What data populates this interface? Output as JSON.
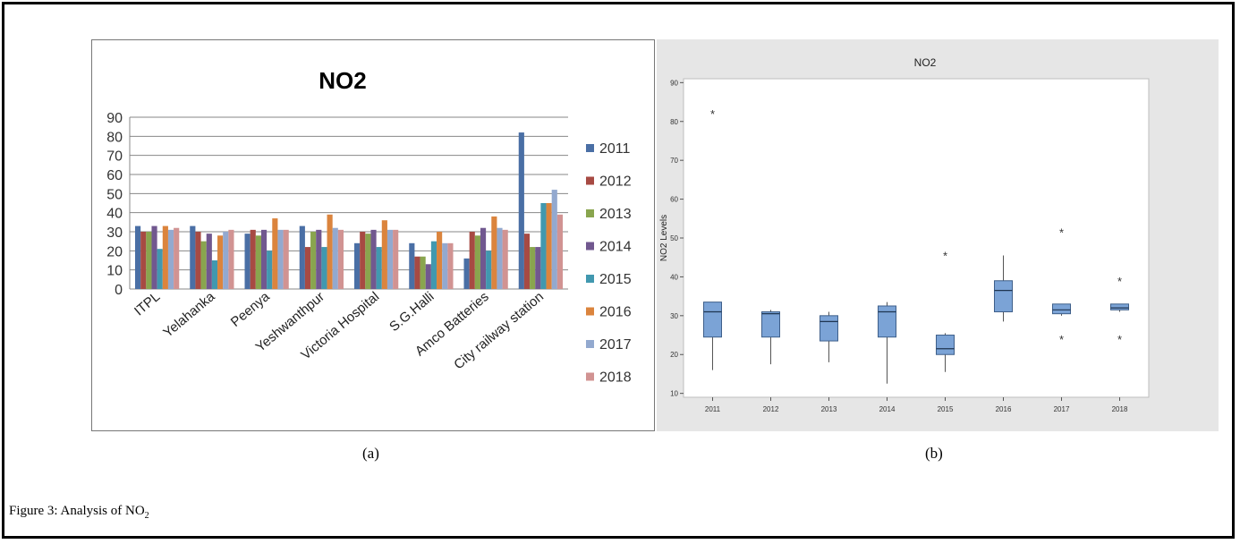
{
  "figure": {
    "caption_prefix": "Figure 3: Analysis of NO",
    "caption_subscript": "2",
    "panel_a_label": "(a)",
    "panel_b_label": "(b)"
  },
  "chart_data": [
    {
      "type": "bar",
      "title": "NO2",
      "xlabel": "",
      "ylabel": "",
      "ylim": [
        0,
        90
      ],
      "yticks": [
        0,
        10,
        20,
        30,
        40,
        50,
        60,
        70,
        80,
        90
      ],
      "grid": true,
      "legend_position": "right",
      "categories": [
        "ITPL",
        "Yelahanka",
        "Peenya",
        "Yeshwanthpur",
        "Victoria Hospital",
        "S.G.Halli",
        "Amco Batteries",
        "City railway station"
      ],
      "series": [
        {
          "name": "2011",
          "color": "#4a6fa5",
          "values": [
            33,
            33,
            29,
            33,
            24,
            24,
            16,
            82
          ]
        },
        {
          "name": "2012",
          "color": "#a74a43",
          "values": [
            30,
            30,
            31,
            22,
            30,
            17,
            30,
            29
          ]
        },
        {
          "name": "2013",
          "color": "#89a54e",
          "values": [
            30,
            25,
            28,
            30,
            29,
            17,
            28,
            22
          ]
        },
        {
          "name": "2014",
          "color": "#71588f",
          "values": [
            33,
            29,
            31,
            31,
            31,
            13,
            32,
            22
          ]
        },
        {
          "name": "2015",
          "color": "#4198af",
          "values": [
            21,
            15,
            20,
            22,
            22,
            25,
            20,
            45
          ]
        },
        {
          "name": "2016",
          "color": "#db843d",
          "values": [
            33,
            28,
            37,
            39,
            36,
            30,
            38,
            45
          ]
        },
        {
          "name": "2017",
          "color": "#93a9cf",
          "values": [
            31,
            30,
            31,
            32,
            31,
            24,
            32,
            52
          ]
        },
        {
          "name": "2018",
          "color": "#d19392",
          "values": [
            32,
            31,
            31,
            31,
            31,
            24,
            31,
            39
          ]
        }
      ]
    },
    {
      "type": "boxplot",
      "title": "NO2",
      "xlabel": "",
      "ylabel": "NO2 Levels",
      "ylim": [
        9,
        91
      ],
      "yticks": [
        10,
        20,
        30,
        40,
        50,
        60,
        70,
        80,
        90
      ],
      "box_color": "#7ba3d6",
      "categories": [
        "2011",
        "2012",
        "2013",
        "2014",
        "2015",
        "2016",
        "2017",
        "2018"
      ],
      "boxes": [
        {
          "label": "2011",
          "min": 16,
          "q1": 24.5,
          "median": 31,
          "q3": 33.5,
          "max": 33.5,
          "outliers": [
            82
          ]
        },
        {
          "label": "2012",
          "min": 17.5,
          "q1": 24.5,
          "median": 30.5,
          "q3": 31,
          "max": 31.5,
          "outliers": []
        },
        {
          "label": "2013",
          "min": 18,
          "q1": 23.5,
          "median": 28.5,
          "q3": 30,
          "max": 31,
          "outliers": []
        },
        {
          "label": "2014",
          "min": 12.5,
          "q1": 24.5,
          "median": 31,
          "q3": 32.5,
          "max": 33.5,
          "outliers": []
        },
        {
          "label": "2015",
          "min": 15.5,
          "q1": 20,
          "median": 21.5,
          "q3": 25,
          "max": 25.5,
          "outliers": [
            45.5
          ]
        },
        {
          "label": "2016",
          "min": 28.5,
          "q1": 31,
          "median": 36.5,
          "q3": 39,
          "max": 45.5,
          "outliers": []
        },
        {
          "label": "2017",
          "min": 30,
          "q1": 30.5,
          "median": 31.5,
          "q3": 33,
          "max": 33,
          "outliers": [
            51.5,
            24
          ]
        },
        {
          "label": "2018",
          "min": 31,
          "q1": 31.5,
          "median": 32,
          "q3": 33,
          "max": 33,
          "outliers": [
            39,
            24
          ]
        }
      ]
    }
  ]
}
